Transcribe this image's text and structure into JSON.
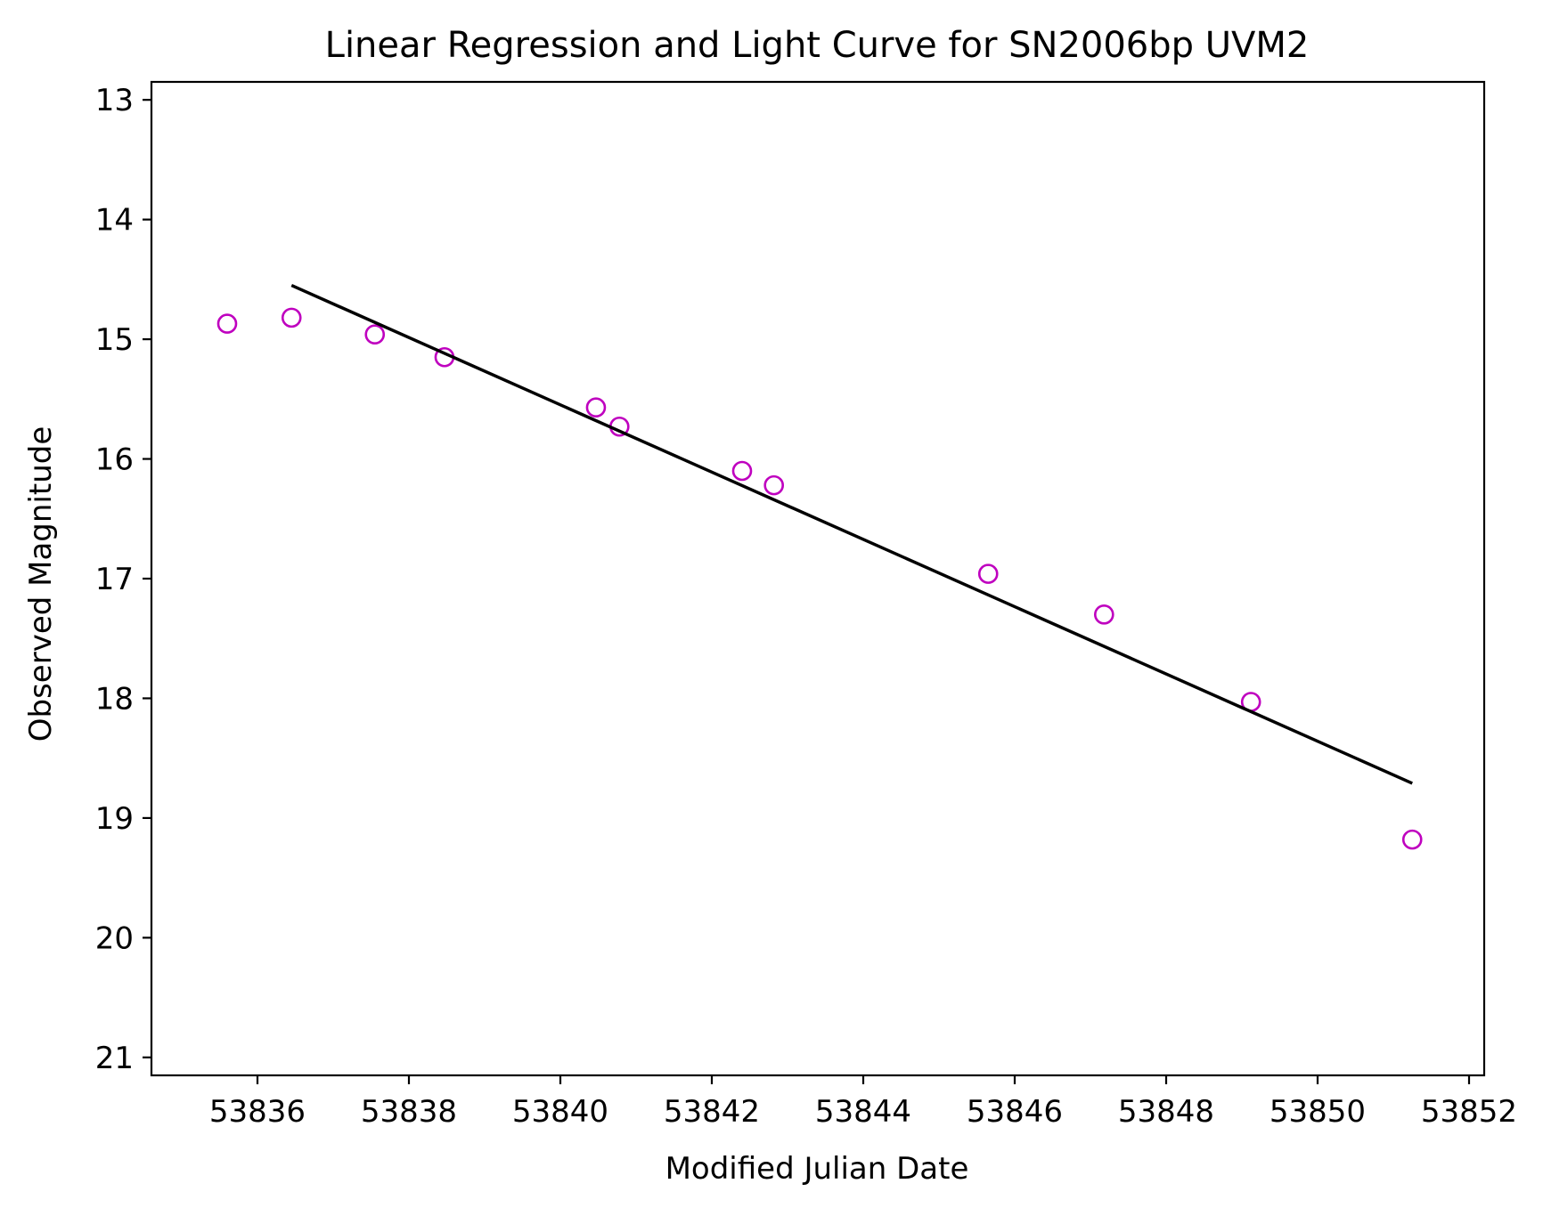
{
  "chart_data": {
    "type": "scatter",
    "title": "Linear Regression and Light Curve for SN2006bp UVM2",
    "xlabel": "Modified Julian Date",
    "ylabel": "Observed Magnitude",
    "xlim": [
      53834.6,
      53852.2
    ],
    "ylim": [
      21.15,
      12.85
    ],
    "y_inverted": true,
    "x_ticks": [
      53836,
      53838,
      53840,
      53842,
      53844,
      53846,
      53848,
      53850,
      53852
    ],
    "y_ticks": [
      13,
      14,
      15,
      16,
      17,
      18,
      19,
      20,
      21
    ],
    "grid": false,
    "series": [
      {
        "kind": "points",
        "marker": "open-circle",
        "color": "#bf00bf",
        "x": [
          53835.6,
          53836.45,
          53837.55,
          53838.47,
          53840.47,
          53840.78,
          53842.4,
          53842.82,
          53845.65,
          53847.18,
          53849.12,
          53851.25
        ],
        "y": [
          14.87,
          14.82,
          14.96,
          15.15,
          15.57,
          15.73,
          16.1,
          16.22,
          16.96,
          17.3,
          18.03,
          19.18
        ]
      },
      {
        "kind": "line",
        "color": "#000000",
        "x": [
          53836.45,
          53851.25
        ],
        "y": [
          14.55,
          18.71
        ]
      }
    ]
  }
}
